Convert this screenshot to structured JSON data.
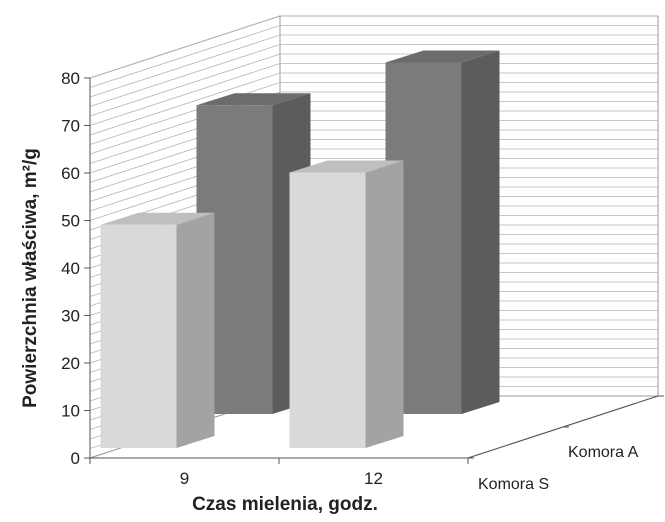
{
  "chart_data": {
    "type": "bar",
    "style": "3d-grouped-depth",
    "categories": [
      "9",
      "12"
    ],
    "series": [
      {
        "name": "Komora S",
        "values": [
          47,
          58
        ],
        "color": "#d9d9d9"
      },
      {
        "name": "Komora A",
        "values": [
          65,
          74
        ],
        "color": "#7b7b7b"
      }
    ],
    "ylabel": "Powierzchnia właściwa, m²/g",
    "xlabel": "Czas mielenia, godz.",
    "ylim": [
      0,
      80
    ],
    "yticks": [
      0,
      10,
      20,
      30,
      40,
      50,
      60,
      70,
      80
    ],
    "grid": true
  }
}
